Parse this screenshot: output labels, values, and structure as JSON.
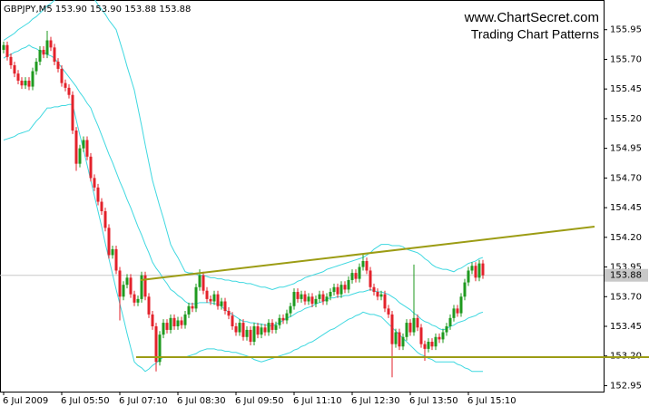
{
  "chart_data": {
    "type": "candlestick",
    "title": "GBPJPY,M5  153.90 153.90 153.88 153.88",
    "site": "www.ChartSecret.com",
    "subtitle": "Trading Chart Patterns",
    "categories": [
      "6 Jul 2009",
      null,
      null,
      null,
      null,
      null,
      null,
      null,
      null,
      null,
      null,
      null,
      null,
      null,
      null,
      null,
      "6 Jul 05:50",
      null,
      null,
      null,
      null,
      null,
      null,
      null,
      null,
      null,
      null,
      null,
      null,
      null,
      null,
      null,
      "6 Jul 07:10",
      null,
      null,
      null,
      null,
      null,
      null,
      null,
      null,
      null,
      null,
      null,
      null,
      null,
      null,
      null,
      "6 Jul 08:30",
      null,
      null,
      null,
      null,
      null,
      null,
      null,
      null,
      null,
      null,
      null,
      null,
      null,
      null,
      null,
      "6 Jul 09:50",
      null,
      null,
      null,
      null,
      null,
      null,
      null,
      null,
      null,
      null,
      null,
      null,
      null,
      null,
      null,
      "6 Jul 11:10",
      null,
      null,
      null,
      null,
      null,
      null,
      null,
      null,
      null,
      null,
      null,
      null,
      null,
      null,
      null,
      "6 Jul 12:30",
      null,
      null,
      null,
      null,
      null,
      null,
      null,
      null,
      null,
      null,
      null,
      null,
      null,
      null,
      null,
      "6 Jul 13:50",
      null,
      null,
      null,
      null,
      null,
      null,
      null,
      null,
      null,
      null,
      null,
      null,
      null,
      null,
      null,
      "6 Jul 15:10",
      null,
      null,
      null,
      null
    ],
    "open": [
      155.78,
      155.82,
      155.72,
      155.65,
      155.58,
      155.52,
      155.48,
      155.52,
      155.47,
      155.6,
      155.68,
      155.78,
      155.74,
      155.86,
      155.8,
      155.68,
      155.62,
      155.5,
      155.46,
      155.4,
      155.1,
      154.82,
      154.95,
      155.02,
      154.88,
      154.7,
      154.62,
      154.5,
      154.42,
      154.28,
      154.05,
      154.1,
      153.92,
      153.7,
      153.8,
      153.86,
      153.72,
      153.65,
      153.68,
      153.88,
      153.7,
      153.55,
      153.45,
      153.15,
      153.38,
      153.48,
      153.42,
      153.52,
      153.45,
      153.5,
      153.46,
      153.55,
      153.62,
      153.6,
      153.78,
      153.88,
      153.75,
      153.68,
      153.66,
      153.72,
      153.62,
      153.66,
      153.58,
      153.54,
      153.45,
      153.4,
      153.48,
      153.36,
      153.42,
      153.32,
      153.45,
      153.38,
      153.44,
      153.4,
      153.48,
      153.42,
      153.46,
      153.52,
      153.5,
      153.56,
      153.62,
      153.74,
      153.68,
      153.72,
      153.66,
      153.7,
      153.64,
      153.68,
      153.72,
      153.66,
      153.7,
      153.74,
      153.78,
      153.72,
      153.8,
      153.76,
      153.84,
      153.9,
      153.85,
      153.95,
      154.0,
      153.92,
      153.78,
      153.74,
      153.7,
      153.72,
      153.6,
      153.55,
      153.3,
      153.4,
      153.28,
      153.36,
      153.48,
      153.4,
      153.52,
      153.44,
      153.3,
      153.26,
      153.32,
      153.28,
      153.36,
      153.34,
      153.4,
      153.45,
      153.52,
      153.6,
      153.56,
      153.7,
      153.82,
      153.92,
      153.96,
      153.86,
      153.98
    ],
    "high": [
      155.85,
      155.85,
      155.75,
      155.68,
      155.61,
      155.55,
      155.55,
      155.55,
      155.63,
      155.71,
      155.81,
      155.81,
      155.94,
      155.89,
      155.83,
      155.71,
      155.65,
      155.53,
      155.49,
      155.43,
      155.13,
      154.98,
      155.05,
      155.05,
      154.91,
      154.73,
      154.65,
      154.53,
      154.45,
      154.31,
      154.13,
      154.13,
      153.95,
      153.83,
      153.89,
      153.89,
      153.75,
      153.71,
      153.91,
      153.91,
      153.73,
      153.58,
      153.48,
      153.41,
      153.51,
      153.51,
      153.55,
      153.55,
      153.53,
      153.53,
      153.58,
      153.65,
      153.65,
      153.81,
      153.93,
      153.91,
      153.78,
      153.71,
      153.75,
      153.75,
      153.69,
      153.69,
      153.61,
      153.57,
      153.48,
      153.51,
      153.51,
      153.45,
      153.45,
      153.48,
      153.48,
      153.47,
      153.47,
      153.51,
      153.51,
      153.49,
      153.55,
      153.55,
      153.59,
      153.65,
      153.77,
      153.77,
      153.75,
      153.75,
      153.73,
      153.73,
      153.71,
      153.75,
      153.75,
      153.73,
      153.77,
      153.81,
      153.81,
      153.83,
      153.83,
      153.87,
      153.93,
      153.93,
      153.98,
      154.06,
      154.03,
      153.95,
      153.81,
      153.77,
      153.75,
      153.75,
      153.63,
      153.58,
      153.43,
      153.43,
      153.39,
      153.51,
      153.51,
      153.97,
      153.55,
      153.47,
      153.33,
      153.35,
      153.35,
      153.39,
      153.39,
      153.43,
      153.48,
      153.55,
      153.63,
      153.63,
      153.73,
      153.85,
      153.95,
      153.99,
      153.99,
      154.01,
      154.01
    ],
    "low": [
      155.75,
      155.69,
      155.62,
      155.55,
      155.49,
      155.45,
      155.45,
      155.44,
      155.44,
      155.57,
      155.65,
      155.71,
      155.71,
      155.77,
      155.65,
      155.59,
      155.47,
      155.43,
      155.37,
      155.07,
      154.76,
      154.79,
      154.92,
      154.85,
      154.67,
      154.59,
      154.47,
      154.39,
      154.25,
      154.02,
      154.02,
      153.89,
      153.5,
      153.67,
      153.77,
      153.69,
      153.62,
      153.62,
      153.65,
      153.67,
      153.52,
      153.42,
      153.07,
      153.12,
      153.35,
      153.39,
      153.39,
      153.42,
      153.42,
      153.43,
      153.43,
      153.52,
      153.57,
      153.57,
      153.75,
      153.72,
      153.65,
      153.63,
      153.63,
      153.59,
      153.59,
      153.55,
      153.51,
      153.42,
      153.37,
      153.37,
      153.33,
      153.33,
      153.29,
      153.29,
      153.35,
      153.35,
      153.37,
      153.37,
      153.39,
      153.39,
      153.43,
      153.47,
      153.47,
      153.53,
      153.59,
      153.65,
      153.65,
      153.63,
      153.63,
      153.61,
      153.61,
      153.65,
      153.63,
      153.63,
      153.67,
      153.71,
      153.69,
      153.69,
      153.73,
      153.73,
      153.81,
      153.82,
      153.82,
      153.92,
      153.89,
      153.75,
      153.71,
      153.67,
      153.67,
      153.57,
      153.52,
      153.02,
      153.27,
      153.25,
      153.25,
      153.33,
      153.37,
      153.37,
      153.41,
      153.27,
      153.16,
      153.23,
      153.25,
      153.25,
      153.31,
      153.31,
      153.37,
      153.42,
      153.49,
      153.53,
      153.53,
      153.67,
      153.79,
      153.89,
      153.83,
      153.83,
      153.85
    ],
    "close": [
      155.82,
      155.72,
      155.65,
      155.58,
      155.52,
      155.48,
      155.52,
      155.47,
      155.6,
      155.68,
      155.78,
      155.74,
      155.86,
      155.8,
      155.68,
      155.62,
      155.5,
      155.46,
      155.4,
      155.1,
      154.82,
      154.95,
      155.02,
      154.88,
      154.7,
      154.62,
      154.5,
      154.42,
      154.28,
      154.05,
      154.1,
      153.92,
      153.7,
      153.8,
      153.86,
      153.72,
      153.65,
      153.68,
      153.88,
      153.7,
      153.55,
      153.45,
      153.15,
      153.38,
      153.48,
      153.42,
      153.52,
      153.45,
      153.5,
      153.46,
      153.55,
      153.62,
      153.6,
      153.78,
      153.88,
      153.75,
      153.68,
      153.66,
      153.72,
      153.62,
      153.66,
      153.58,
      153.54,
      153.45,
      153.4,
      153.48,
      153.36,
      153.42,
      153.32,
      153.45,
      153.38,
      153.44,
      153.4,
      153.48,
      153.42,
      153.46,
      153.52,
      153.5,
      153.56,
      153.62,
      153.74,
      153.68,
      153.72,
      153.66,
      153.7,
      153.64,
      153.68,
      153.72,
      153.66,
      153.7,
      153.74,
      153.78,
      153.72,
      153.8,
      153.76,
      153.84,
      153.9,
      153.85,
      153.95,
      154.0,
      153.92,
      153.78,
      153.74,
      153.7,
      153.72,
      153.6,
      153.55,
      153.3,
      153.4,
      153.28,
      153.36,
      153.48,
      153.4,
      153.52,
      153.44,
      153.3,
      153.26,
      153.32,
      153.28,
      153.36,
      153.34,
      153.4,
      153.45,
      153.52,
      153.6,
      153.56,
      153.7,
      153.82,
      153.92,
      153.96,
      153.86,
      153.98,
      153.88
    ],
    "up_color": "#1f9a1f",
    "down_color": "#e3222b",
    "bands": {
      "color": "#3fd8e0",
      "upper": [
        155.86,
        155.88,
        155.9,
        155.92,
        155.95,
        155.97,
        155.99,
        156.01,
        156.04,
        156.06,
        156.09,
        156.12,
        156.15,
        156.17,
        156.2,
        156.21,
        156.21,
        156.22,
        156.22,
        156.23,
        156.23,
        156.24,
        156.24,
        156.25,
        156.25,
        156.21,
        156.16,
        156.12,
        156.08,
        156.03,
        155.99,
        155.95,
        155.85,
        155.75,
        155.64,
        155.54,
        155.44,
        155.29,
        155.14,
        154.98,
        154.83,
        154.68,
        154.57,
        154.46,
        154.36,
        154.25,
        154.14,
        154.08,
        154.03,
        153.97,
        153.91,
        153.9,
        153.9,
        153.89,
        153.88,
        153.88,
        153.87,
        153.86,
        153.86,
        153.85,
        153.85,
        153.84,
        153.84,
        153.83,
        153.83,
        153.82,
        153.82,
        153.81,
        153.81,
        153.8,
        153.79,
        153.78,
        153.78,
        153.77,
        153.76,
        153.77,
        153.78,
        153.78,
        153.79,
        153.8,
        153.81,
        153.83,
        153.84,
        153.86,
        153.87,
        153.88,
        153.89,
        153.9,
        153.91,
        153.93,
        153.94,
        153.95,
        153.96,
        153.97,
        153.98,
        153.99,
        154.0,
        154.01,
        154.02,
        154.03,
        154.05,
        154.07,
        154.1,
        154.12,
        154.14,
        154.14,
        154.14,
        154.13,
        154.13,
        154.13,
        154.12,
        154.1,
        154.09,
        154.08,
        154.07,
        154.05,
        154.02,
        154.0,
        153.97,
        153.95,
        153.94,
        153.93,
        153.93,
        153.92,
        153.91,
        153.93,
        153.94,
        153.96,
        153.98,
        153.99,
        154.0,
        154.02,
        154.03
      ],
      "middle": [
        155.71,
        155.73,
        155.74,
        155.76,
        155.77,
        155.79,
        155.8,
        155.82,
        155.8,
        155.79,
        155.77,
        155.76,
        155.74,
        155.73,
        155.71,
        155.67,
        155.63,
        155.59,
        155.55,
        155.51,
        155.47,
        155.42,
        155.38,
        155.33,
        155.29,
        155.21,
        155.14,
        155.06,
        154.98,
        154.9,
        154.83,
        154.75,
        154.67,
        154.6,
        154.52,
        154.45,
        154.37,
        154.29,
        154.22,
        154.14,
        154.07,
        153.99,
        153.94,
        153.9,
        153.85,
        153.81,
        153.76,
        153.74,
        153.71,
        153.69,
        153.66,
        153.64,
        153.64,
        153.64,
        153.65,
        153.65,
        153.65,
        153.65,
        153.64,
        153.64,
        153.62,
        153.59,
        153.57,
        153.55,
        153.53,
        153.51,
        153.49,
        153.49,
        153.48,
        153.48,
        153.47,
        153.47,
        153.46,
        153.46,
        153.45,
        153.47,
        153.48,
        153.5,
        153.52,
        153.53,
        153.55,
        153.57,
        153.58,
        153.6,
        153.61,
        153.62,
        153.64,
        153.65,
        153.66,
        153.68,
        153.69,
        153.69,
        153.7,
        153.7,
        153.71,
        153.71,
        153.72,
        153.73,
        153.74,
        153.74,
        153.75,
        153.76,
        153.75,
        153.74,
        153.74,
        153.73,
        153.72,
        153.7,
        153.68,
        153.65,
        153.63,
        153.61,
        153.59,
        153.56,
        153.54,
        153.51,
        153.49,
        153.48,
        153.46,
        153.45,
        153.43,
        153.42,
        153.43,
        153.45,
        153.46,
        153.48,
        153.49,
        153.5,
        153.52,
        153.53,
        153.54,
        153.56,
        153.57
      ],
      "lower": [
        155.02,
        155.03,
        155.04,
        155.05,
        155.07,
        155.08,
        155.09,
        155.1,
        155.14,
        155.18,
        155.21,
        155.25,
        155.29,
        155.29,
        155.3,
        155.3,
        155.31,
        155.31,
        155.32,
        155.32,
        155.19,
        155.06,
        154.94,
        154.81,
        154.68,
        154.55,
        154.42,
        154.29,
        154.15,
        154.02,
        153.89,
        153.76,
        153.64,
        153.52,
        153.39,
        153.27,
        153.15,
        153.12,
        153.1,
        153.07,
        153.09,
        153.12,
        153.14,
        153.17,
        153.19,
        153.19,
        153.19,
        153.19,
        153.19,
        153.19,
        153.19,
        153.2,
        153.21,
        153.22,
        153.24,
        153.25,
        153.26,
        153.26,
        153.26,
        153.25,
        153.25,
        153.24,
        153.24,
        153.23,
        153.23,
        153.22,
        153.21,
        153.2,
        153.19,
        153.17,
        153.16,
        153.15,
        153.16,
        153.17,
        153.18,
        153.19,
        153.2,
        153.21,
        153.22,
        153.23,
        153.25,
        153.26,
        153.28,
        153.29,
        153.31,
        153.32,
        153.34,
        153.36,
        153.38,
        153.4,
        153.42,
        153.43,
        153.45,
        153.47,
        153.49,
        153.51,
        153.52,
        153.54,
        153.55,
        153.57,
        153.56,
        153.55,
        153.55,
        153.54,
        153.53,
        153.5,
        153.47,
        153.44,
        153.41,
        153.38,
        153.35,
        153.32,
        153.29,
        153.26,
        153.23,
        153.21,
        153.2,
        153.18,
        153.17,
        153.15,
        153.15,
        153.15,
        153.15,
        153.15,
        153.15,
        153.13,
        153.12,
        153.1,
        153.09,
        153.07,
        153.07,
        153.07,
        153.07
      ]
    },
    "trendlines": [
      {
        "color": "#9c9c14",
        "values": [
          153.84,
          154.29
        ]
      },
      {
        "color": "#9c9c14",
        "values": [
          153.19,
          153.19
        ]
      }
    ],
    "last_price": 153.88,
    "last_price_color": "#c8c8c8",
    "ylim": [
      152.9,
      156.2
    ],
    "yticks": [
      155.95,
      {
        "value": 155.7,
        "label": "155.70"
      },
      155.45,
      {
        "value": 155.2,
        "label": "155.20"
      },
      154.95,
      {
        "value": 154.7,
        "label": "154.70"
      },
      154.45,
      {
        "value": 154.2,
        "label": "154.20"
      },
      153.95,
      {
        "value": 153.7,
        "label": "153.70"
      },
      153.45,
      {
        "value": 153.2,
        "label": "153.20"
      },
      152.95
    ],
    "grid": false
  }
}
